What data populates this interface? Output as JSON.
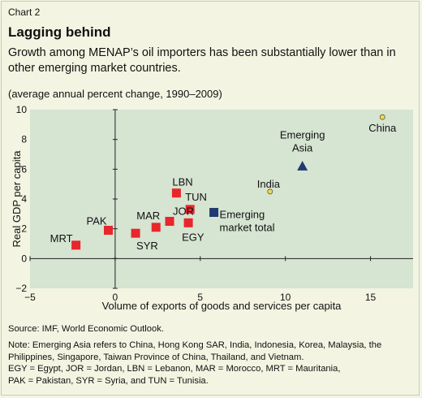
{
  "header": {
    "chart_number": "Chart 2",
    "title": "Lagging behind",
    "subtitle": "Growth among MENAP’s oil importers has been substantially lower than in other emerging market countries.",
    "units": "(average annual percent change, 1990–2009)"
  },
  "footer": {
    "source": "Source: IMF, World Economic Outlook.",
    "notes": [
      "Note: Emerging Asia refers to China, Hong Kong SAR, India, Indonesia, Korea, Malaysia, the",
      "Philippines, Singapore, Taiwan Province of China, Thailand, and Vietnam.",
      "EGY = Egypt, JOR = Jordan, LBN = Lebanon, MAR = Morocco, MRT = Mauritania,",
      "PAK = Pakistan, SYR = Syria, and TUN = Tunisia."
    ]
  },
  "colors": {
    "background": "#f3f5e2",
    "plot_area": "#d6e4d2",
    "menap": "#e8262b",
    "aggregate": "#1f3b6f",
    "comparator": "#f5da4a"
  },
  "chart_data": {
    "type": "scatter",
    "xlabel": "Volume of exports of goods and services per capita",
    "ylabel": "Real GDP per capita",
    "xlim": [
      -5,
      17.5
    ],
    "ylim": [
      -2,
      10
    ],
    "xticks": [
      -5,
      0,
      5,
      10,
      15
    ],
    "yticks": [
      -2,
      0,
      2,
      4,
      6,
      8,
      10
    ],
    "grid": false,
    "points": [
      {
        "label": "MRT",
        "x": -2.3,
        "y": 0.9,
        "group": "menap",
        "marker": "square"
      },
      {
        "label": "PAK",
        "x": -0.4,
        "y": 1.9,
        "group": "menap",
        "marker": "square"
      },
      {
        "label": "SYR",
        "x": 1.2,
        "y": 1.7,
        "group": "menap",
        "marker": "square"
      },
      {
        "label": "MAR",
        "x": 2.4,
        "y": 2.1,
        "group": "menap",
        "marker": "square"
      },
      {
        "label": "JOR",
        "x": 3.2,
        "y": 2.5,
        "group": "menap",
        "marker": "square"
      },
      {
        "label": "LBN",
        "x": 3.6,
        "y": 4.4,
        "group": "menap",
        "marker": "square"
      },
      {
        "label": "TUN",
        "x": 4.4,
        "y": 3.3,
        "group": "menap",
        "marker": "square"
      },
      {
        "label": "EGY",
        "x": 4.3,
        "y": 2.4,
        "group": "menap",
        "marker": "square"
      },
      {
        "label": "Emerging market total",
        "x": 5.8,
        "y": 3.1,
        "group": "aggregate",
        "marker": "square"
      },
      {
        "label": "Emerging Asia",
        "x": 11.0,
        "y": 6.2,
        "group": "aggregate",
        "marker": "triangle"
      },
      {
        "label": "India",
        "x": 9.1,
        "y": 4.5,
        "group": "comparator",
        "marker": "circle"
      },
      {
        "label": "China",
        "x": 15.7,
        "y": 9.5,
        "group": "comparator",
        "marker": "circle"
      }
    ]
  }
}
